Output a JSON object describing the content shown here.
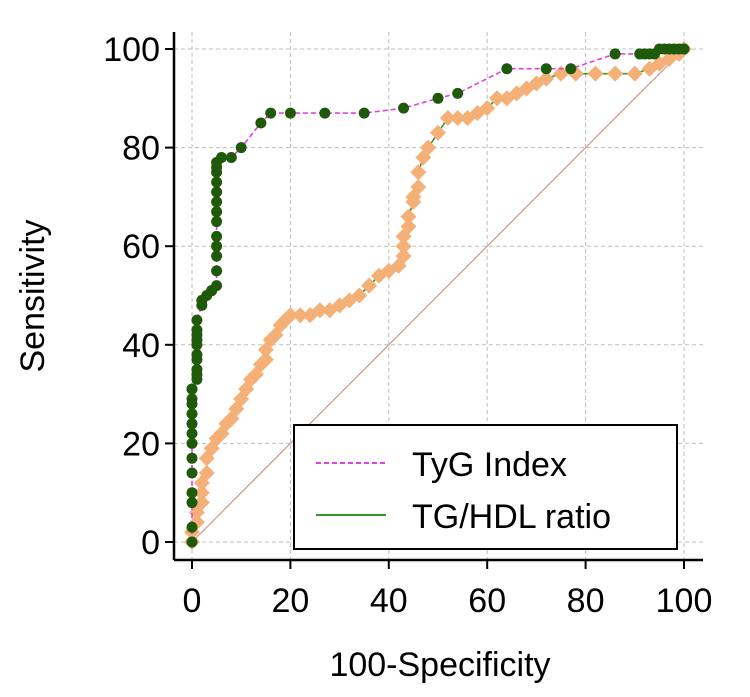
{
  "chart_data": {
    "type": "line",
    "title": "",
    "xlabel": "100-Specificity",
    "ylabel": "Sensitivity",
    "xlim": [
      0,
      100
    ],
    "ylim": [
      0,
      100
    ],
    "xticks": [
      0,
      20,
      40,
      60,
      80,
      100
    ],
    "yticks": [
      0,
      20,
      40,
      60,
      80,
      100
    ],
    "grid": true,
    "legend_position": "bottom-right",
    "colors": {
      "tyg": "#e040e0",
      "tghdl": "#2e9a2e",
      "tyg_marker": "#1f5a0a",
      "tghdl_marker": "#f5b078",
      "diagonal": "#c89a8a",
      "grid": "#bfbfbf"
    },
    "series": [
      {
        "name": "TyG Index",
        "line_style": "dashed",
        "color": "#e040e0",
        "marker": "circle",
        "marker_color": "#1f5a0a",
        "x": [
          0,
          0,
          0,
          0,
          0,
          0,
          0,
          0,
          0,
          0,
          0,
          0,
          0,
          0,
          1,
          1,
          1,
          1,
          1,
          1,
          1,
          1,
          1,
          1,
          2,
          2,
          3,
          4,
          4,
          5,
          5,
          5,
          5,
          5,
          5,
          5,
          5,
          5,
          5,
          5,
          5,
          5,
          6,
          8,
          10,
          14,
          16,
          20,
          27,
          35,
          43,
          50,
          54,
          64,
          72,
          77,
          86,
          91,
          92,
          93,
          94,
          95,
          96,
          97,
          98,
          99,
          100
        ],
        "y": [
          0,
          3,
          8,
          10,
          14,
          17,
          20,
          22,
          24,
          26,
          28,
          29,
          31,
          31,
          33,
          34,
          35,
          37,
          38,
          40,
          41,
          42,
          43,
          45,
          48,
          49,
          50,
          51,
          51,
          52,
          55,
          58,
          60,
          62,
          65,
          67,
          69,
          71,
          73,
          75,
          76,
          77,
          78,
          78,
          80,
          85,
          87,
          87,
          87,
          87,
          88,
          90,
          91,
          96,
          96,
          96,
          99,
          99,
          99,
          99,
          99,
          100,
          100,
          100,
          100,
          100,
          100
        ]
      },
      {
        "name": "TG/HDL ratio",
        "line_style": "solid",
        "color": "#2e9a2e",
        "marker": "diamond",
        "marker_color": "#f5b078",
        "x": [
          0,
          0,
          1,
          1,
          2,
          2,
          2,
          3,
          3,
          4,
          5,
          6,
          7,
          8,
          9,
          10,
          11,
          12,
          13,
          14,
          15,
          15,
          16,
          17,
          18,
          19,
          20,
          22,
          24,
          26,
          28,
          30,
          32,
          34,
          36,
          38,
          40,
          42,
          43,
          43,
          43,
          44,
          44,
          45,
          45,
          46,
          46,
          47,
          48,
          50,
          52,
          54,
          56,
          58,
          60,
          62,
          64,
          66,
          68,
          70,
          72,
          75,
          78,
          82,
          86,
          90,
          93,
          95,
          97,
          99,
          100
        ],
        "y": [
          0,
          2,
          4,
          6,
          8,
          10,
          12,
          14,
          17,
          19,
          21,
          22,
          24,
          25,
          27,
          29,
          31,
          33,
          34,
          36,
          37,
          39,
          41,
          42,
          44,
          45,
          46,
          46,
          46,
          47,
          47,
          48,
          49,
          50,
          52,
          54,
          55,
          56,
          58,
          60,
          62,
          64,
          66,
          69,
          70,
          72,
          75,
          78,
          80,
          83,
          86,
          86,
          86,
          87,
          88,
          90,
          90,
          91,
          92,
          93,
          94,
          95,
          95,
          95,
          95,
          95,
          96,
          97,
          98,
          99,
          100
        ]
      }
    ],
    "reference_line": {
      "x": [
        0,
        100
      ],
      "y": [
        0,
        100
      ]
    }
  },
  "legend": {
    "items": [
      {
        "label": "TyG Index",
        "style": "dashed",
        "color": "#e040e0"
      },
      {
        "label": "TG/HDL ratio",
        "style": "solid",
        "color": "#2e9a2e"
      }
    ]
  }
}
